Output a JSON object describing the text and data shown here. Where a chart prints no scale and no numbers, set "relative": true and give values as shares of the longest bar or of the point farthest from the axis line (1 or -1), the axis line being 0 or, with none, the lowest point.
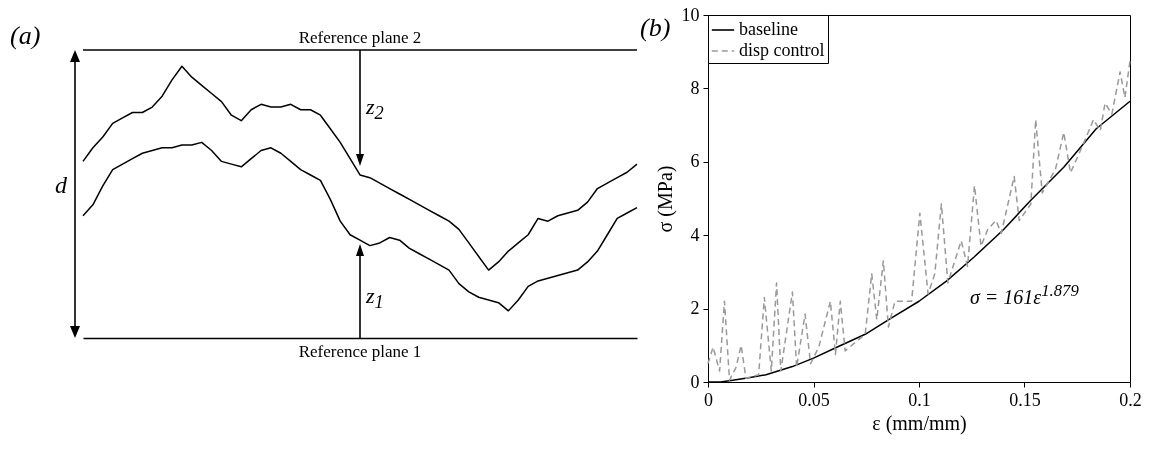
{
  "chart_data": [
    {
      "type": "line",
      "title": "(a)",
      "relative": true,
      "legend": false,
      "grid": false,
      "line_style": "solid",
      "categories": [
        null,
        null,
        null,
        null,
        null,
        null,
        null,
        null,
        null,
        null,
        null,
        null,
        null,
        null,
        null,
        null,
        null,
        null,
        null,
        null,
        null,
        null,
        null,
        null,
        null,
        null,
        null,
        null,
        null,
        null,
        null,
        null,
        null,
        null,
        null,
        null,
        null,
        null,
        null,
        null,
        null,
        null,
        null,
        null,
        null,
        null,
        null,
        null,
        null,
        null,
        null,
        null,
        null,
        null,
        null,
        null,
        null
      ],
      "ref_lines": [
        {
          "axis": "y",
          "value": 1.06,
          "label": "Reference plane 2"
        }
      ],
      "annotations": [
        "Reference plane 1",
        "d",
        "z$_{2}$",
        "z$_{1}$"
      ],
      "series": [
        {
          "color": "#000000",
          "values": [
            0.65,
            0.7,
            0.74,
            0.79,
            0.81,
            0.83,
            0.83,
            0.85,
            0.89,
            0.95,
            1.0,
            0.96,
            0.93,
            0.9,
            0.87,
            0.82,
            0.8,
            0.84,
            0.86,
            0.85,
            0.85,
            0.86,
            0.84,
            0.84,
            0.82,
            0.77,
            0.72,
            0.66,
            0.6,
            0.59,
            0.57,
            0.55,
            0.53,
            0.51,
            0.49,
            0.47,
            0.45,
            0.43,
            0.4,
            0.35,
            0.3,
            0.25,
            0.28,
            0.32,
            0.35,
            0.38,
            0.44,
            0.43,
            0.45,
            0.46,
            0.47,
            0.5,
            0.55,
            0.57,
            0.59,
            0.61,
            0.64
          ]
        },
        {
          "color": "#000000",
          "values": [
            0.45,
            0.49,
            0.56,
            0.62,
            0.64,
            0.66,
            0.68,
            0.69,
            0.7,
            0.7,
            0.71,
            0.71,
            0.72,
            0.69,
            0.65,
            0.64,
            0.63,
            0.66,
            0.69,
            0.7,
            0.68,
            0.65,
            0.62,
            0.6,
            0.58,
            0.51,
            0.43,
            0.38,
            0.36,
            0.34,
            0.35,
            0.37,
            0.36,
            0.33,
            0.31,
            0.29,
            0.27,
            0.25,
            0.2,
            0.17,
            0.15,
            0.14,
            0.13,
            0.1,
            0.14,
            0.19,
            0.21,
            0.22,
            0.23,
            0.24,
            0.25,
            0.28,
            0.32,
            0.38,
            0.44,
            0.46,
            0.48
          ]
        }
      ]
    },
    {
      "type": "line",
      "title": "(b)",
      "xlabel": "ε (mm/mm)",
      "ylabel": "σ (MPa)",
      "xlim": [
        0,
        0.2
      ],
      "xticks": [
        0,
        0.05,
        0.1,
        0.15,
        0.2
      ],
      "ylim": [
        0,
        10
      ],
      "yticks": [
        0,
        2,
        4,
        6,
        8,
        10
      ],
      "grid": false,
      "legend": "top left",
      "annotations": [
        "σ = 161ε$^{1.879}$"
      ],
      "series": [
        {
          "name": "baseline",
          "color": "#000000",
          "line_style": "solid",
          "x": [
            0,
            0.006,
            0.0118,
            0.02,
            0.0275,
            0.04,
            0.05,
            0.06,
            0.0745,
            0.087,
            0.1,
            0.113,
            0.126,
            0.14,
            0.153,
            0.1686,
            0.184,
            0.2
          ],
          "values": [
            0,
            0,
            0.05,
            0.12,
            0.2,
            0.42,
            0.65,
            0.92,
            1.3,
            1.75,
            2.2,
            2.75,
            3.4,
            4.15,
            4.95,
            5.85,
            6.9,
            7.65
          ]
        },
        {
          "name": "disp control",
          "color": "#999999",
          "line_style": "dashed",
          "x": [
            0,
            0.0024,
            0.0055,
            0.0078,
            0.0102,
            0.0133,
            0.0157,
            0.018,
            0.024,
            0.0267,
            0.03,
            0.0325,
            0.0345,
            0.04,
            0.042,
            0.046,
            0.0486,
            0.0525,
            0.058,
            0.0604,
            0.0627,
            0.065,
            0.0745,
            0.0776,
            0.08,
            0.0831,
            0.0855,
            0.0886,
            0.0965,
            0.1004,
            0.1043,
            0.1075,
            0.1106,
            0.1137,
            0.12,
            0.123,
            0.1263,
            0.1294,
            0.1325,
            0.1365,
            0.139,
            0.1451,
            0.1475,
            0.153,
            0.1553,
            0.1584,
            0.1647,
            0.1686,
            0.1718,
            0.178,
            0.1827,
            0.1859,
            0.1882,
            0.1914,
            0.1953,
            0.1976,
            0.2
          ],
          "values": [
            0.5,
            0.95,
            0.3,
            2.2,
            0.05,
            0.4,
            1.0,
            0.1,
            0.2,
            2.3,
            0.3,
            2.7,
            0.3,
            2.45,
            0.4,
            1.85,
            0.5,
            0.95,
            2.2,
            0.75,
            2.2,
            0.85,
            1.3,
            2.95,
            1.7,
            3.3,
            1.5,
            2.2,
            2.2,
            4.6,
            2.4,
            2.95,
            4.85,
            2.7,
            3.85,
            3.15,
            5.35,
            3.7,
            4.15,
            4.4,
            4.05,
            5.6,
            4.4,
            4.85,
            7.15,
            5.15,
            5.8,
            6.8,
            5.7,
            6.5,
            7.15,
            6.85,
            7.6,
            7.3,
            8.45,
            7.75,
            8.75
          ]
        }
      ]
    }
  ]
}
